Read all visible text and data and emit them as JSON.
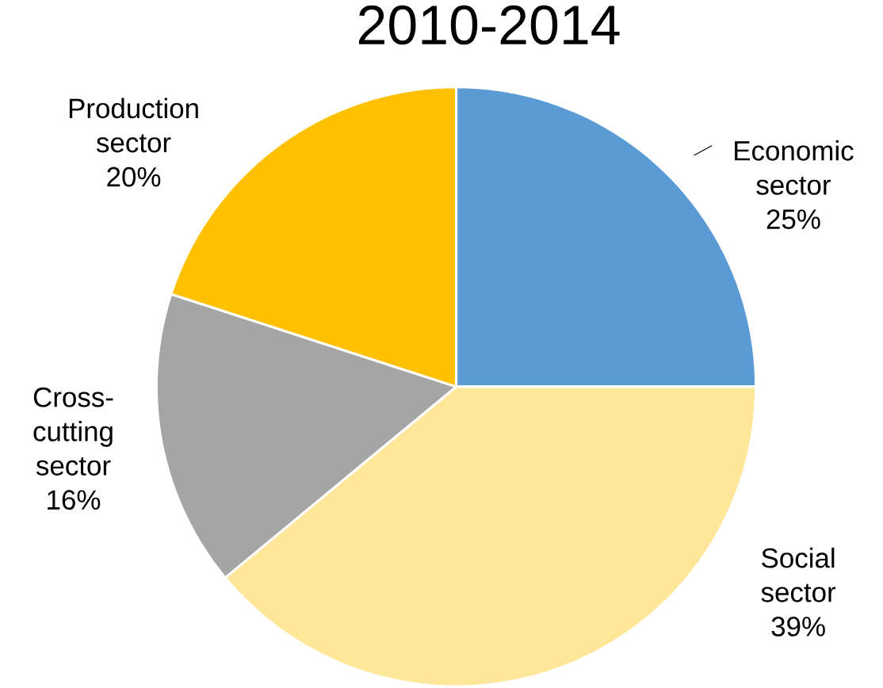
{
  "chart_data": {
    "type": "pie",
    "title": "2010-2014",
    "categories": [
      "Economic sector",
      "Social sector",
      "Cross-cutting sector",
      "Production sector"
    ],
    "values": [
      25,
      39,
      16,
      20
    ],
    "value_labels": [
      "25%",
      "39%",
      "16%",
      "20%"
    ],
    "colors": [
      "#5b9bd5",
      "#ffe699",
      "#a5a5a5",
      "#ffc000"
    ]
  }
}
